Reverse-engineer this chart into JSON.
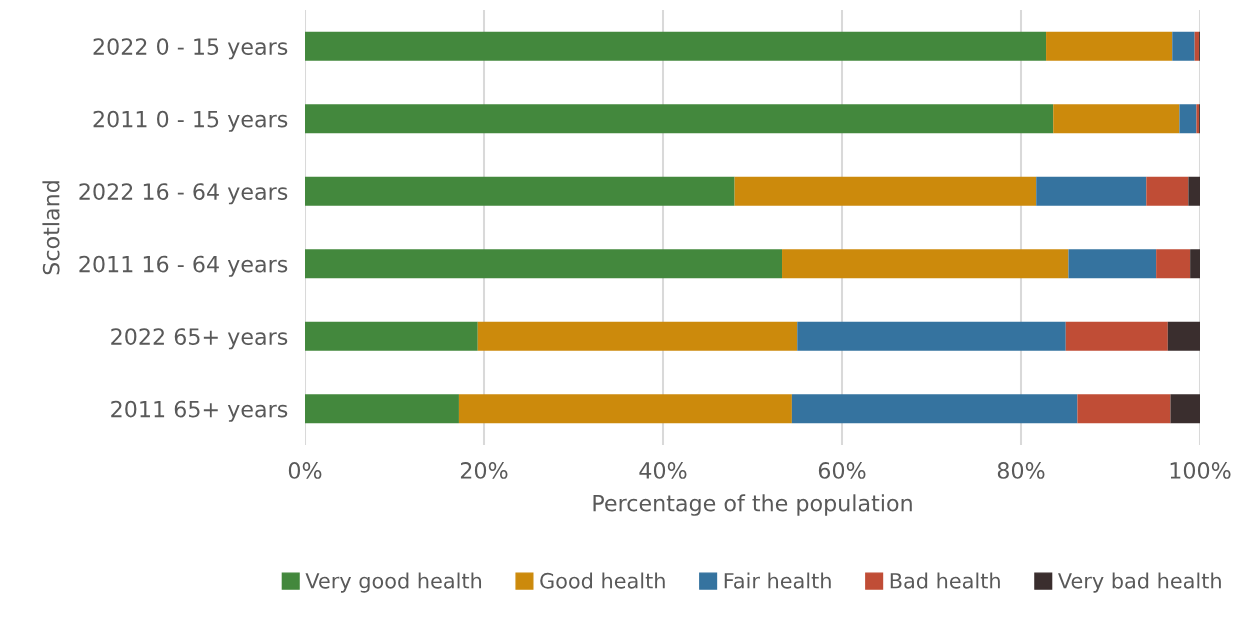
{
  "chart_data": {
    "type": "bar",
    "orientation": "horizontal",
    "stacked": true,
    "xlabel": "Percentage of the population",
    "ylabel": "Scotland",
    "categories": [
      "2022 0 - 15 years",
      "2011 0 - 15 years",
      "2022 16 - 64 years",
      "2011 16 - 64 years",
      "2022 65+ years",
      "2011 65+ years"
    ],
    "series": [
      {
        "name": "Very good health",
        "color": "#43883d",
        "values": [
          82.8,
          83.6,
          48.0,
          53.3,
          19.3,
          17.2
        ]
      },
      {
        "name": "Good health",
        "color": "#cc8a0c",
        "values": [
          14.1,
          14.1,
          33.7,
          32.0,
          35.7,
          37.2
        ]
      },
      {
        "name": "Fair health",
        "color": "#35739f",
        "values": [
          2.5,
          1.9,
          12.3,
          9.8,
          30.0,
          31.9
        ]
      },
      {
        "name": "Bad health",
        "color": "#c04d36",
        "values": [
          0.5,
          0.3,
          4.7,
          3.8,
          11.4,
          10.4
        ]
      },
      {
        "name": "Very bad health",
        "color": "#3a2e2e",
        "values": [
          0.1,
          0.1,
          1.3,
          1.1,
          3.6,
          3.3
        ]
      }
    ],
    "xlim": [
      0,
      100
    ],
    "xticks": [
      {
        "value": 0,
        "label": "0%"
      },
      {
        "value": 20,
        "label": "20%"
      },
      {
        "value": 40,
        "label": "40%"
      },
      {
        "value": 60,
        "label": "60%"
      },
      {
        "value": 80,
        "label": "80%"
      },
      {
        "value": 100,
        "label": "100%"
      }
    ],
    "grid": "x",
    "legend": "bottom"
  }
}
